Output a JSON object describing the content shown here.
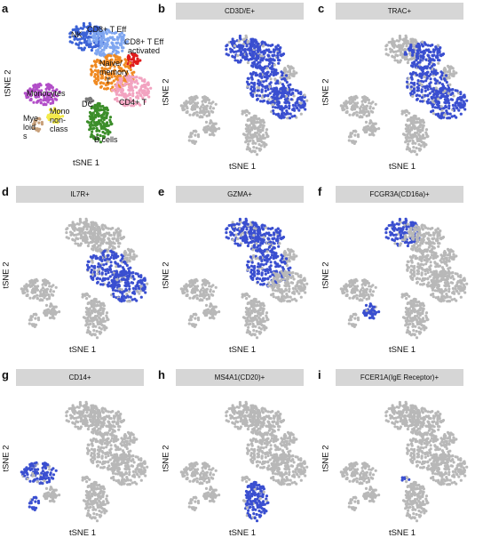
{
  "chart_data": [
    {
      "panel": "a",
      "type": "scatter",
      "xlabel": "tSNE 1",
      "ylabel": "tSNE 2",
      "clusters": [
        {
          "name": "NK",
          "color": "#3b62d6"
        },
        {
          "name": "CD8+ T Eff",
          "color": "#7fa6f0"
        },
        {
          "name": "CD8+ T Eff activated",
          "color": "#e01b1b"
        },
        {
          "name": "Naive/ memory T",
          "color": "#f08a22"
        },
        {
          "name": "CD4+ T",
          "color": "#f2a3c0"
        },
        {
          "name": "Monocytes",
          "color": "#b24ec8"
        },
        {
          "name": "DC",
          "color": "#7a7a7a"
        },
        {
          "name": "Mono non-class",
          "color": "#f3ea4a"
        },
        {
          "name": "Myeloids",
          "color": "#c8a07a"
        },
        {
          "name": "B cells",
          "color": "#3c8e2a"
        }
      ]
    },
    {
      "panel": "b",
      "type": "scatter",
      "title": "CD3D/E+",
      "xlabel": "tSNE 1",
      "ylabel": "tSNE 2",
      "positive_clusters": [
        "NK",
        "CD8+ T Eff",
        "Naive/ memory T",
        "CD4+ T"
      ]
    },
    {
      "panel": "c",
      "type": "scatter",
      "title": "TRAC+",
      "xlabel": "tSNE 1",
      "ylabel": "tSNE 2",
      "positive_clusters": [
        "CD8+ T Eff",
        "Naive/ memory T",
        "CD4+ T"
      ]
    },
    {
      "panel": "d",
      "type": "scatter",
      "title": "IL7R+",
      "xlabel": "tSNE 1",
      "ylabel": "tSNE 2",
      "positive_clusters": [
        "Naive/ memory T",
        "CD4+ T"
      ]
    },
    {
      "panel": "e",
      "type": "scatter",
      "title": "GZMA+",
      "xlabel": "tSNE 1",
      "ylabel": "tSNE 2",
      "positive_clusters": [
        "NK",
        "CD8+ T Eff",
        "Naive/ memory T"
      ]
    },
    {
      "panel": "f",
      "type": "scatter",
      "title": "FCGR3A(CD16a)+",
      "xlabel": "tSNE 1",
      "ylabel": "tSNE 2",
      "positive_clusters": [
        "NK",
        "Mono non-class"
      ]
    },
    {
      "panel": "g",
      "type": "scatter",
      "title": "CD14+",
      "xlabel": "tSNE 1",
      "ylabel": "tSNE 2",
      "positive_clusters": [
        "Monocytes",
        "Myeloids"
      ]
    },
    {
      "panel": "h",
      "type": "scatter",
      "title": "MS4A1(CD20)+",
      "xlabel": "tSNE 1",
      "ylabel": "tSNE 2",
      "positive_clusters": [
        "B cells"
      ]
    },
    {
      "panel": "i",
      "type": "scatter",
      "title": "FCER1A(IgE Receptor)+",
      "xlabel": "tSNE 1",
      "ylabel": "tSNE 2",
      "positive_clusters": [
        "DC"
      ]
    }
  ],
  "panel_letters": [
    "a",
    "b",
    "c",
    "d",
    "e",
    "f",
    "g",
    "h",
    "i"
  ],
  "cluster_labels": {
    "nk": "NK",
    "cd8_eff": "CD8+ T Eff",
    "cd8_act_1": "CD8+ T Eff",
    "cd8_act_2": "activated",
    "naive_1": "Naive/",
    "naive_2": "memory",
    "naive_3": "T",
    "cd4": "CD4+ T",
    "mono": "Monocytes",
    "dc": "DC",
    "mononc_1": "Mono",
    "mononc_2": "non-",
    "mononc_3": "class",
    "myel_1": "Mye",
    "myel_2": "loid",
    "myel_3": "s",
    "bcells": "B cells"
  },
  "colors": {
    "background_cell": "#b8b8b8",
    "positive_cell": "#3a4fd0",
    "strip": "#d6d6d6"
  }
}
